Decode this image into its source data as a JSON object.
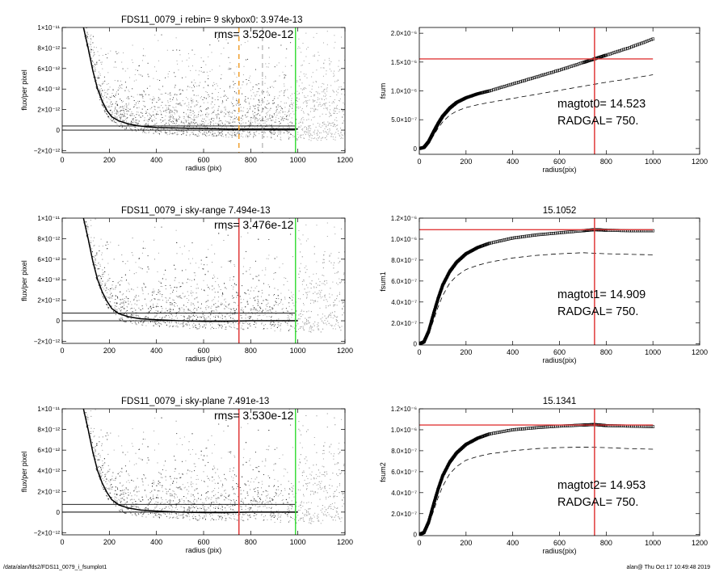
{
  "footer": {
    "path": "/data/alan/fds2/FDS11_0079_i_fsumplot1",
    "stamp": "alan@  Thu Oct 17 10:49:48 2019"
  },
  "colors": {
    "scatter": "#a0a0a0",
    "profile": "#000000",
    "red_line": "#e03a3a",
    "green_line": "#3cdc3c",
    "orange_line": "#f0a030",
    "grid_text": "#000000"
  },
  "chart_data": [
    {
      "type": "scatter",
      "panel": "left-top",
      "title": "FDS11_0079_i rebin= 9    skybox0:  3.974e-13",
      "annotation": "rms= 3.520e-12",
      "xlabel": "radius (pix)",
      "ylabel": "flux/per pixel",
      "xlim": [
        0,
        1200
      ],
      "ylim": [
        -2.2e-12,
        1e-11
      ],
      "xticks": [
        "0",
        "200",
        "400",
        "600",
        "800",
        "1000",
        "1200"
      ],
      "yticks": [
        {
          "value": 1e-11,
          "label": "1×10⁻¹¹"
        },
        {
          "value": 8e-12,
          "label": "8×10⁻¹²"
        },
        {
          "value": 6e-12,
          "label": "6×10⁻¹²"
        },
        {
          "value": 4e-12,
          "label": "4×10⁻¹²"
        },
        {
          "value": 2e-12,
          "label": "2×10⁻¹²"
        },
        {
          "value": 0,
          "label": "0"
        },
        {
          "value": -2e-12,
          "label": "−2×10⁻¹²"
        }
      ],
      "profile": {
        "x": [
          90,
          110,
          130,
          150,
          170,
          190,
          210,
          240,
          280,
          330,
          400,
          500,
          600,
          700,
          800,
          900,
          1000
        ],
        "y": [
          1e-11,
          8e-12,
          5.8e-12,
          4e-12,
          2.8e-12,
          1.9e-12,
          1.3e-12,
          9e-13,
          6e-13,
          4e-13,
          2.5e-13,
          2e-13,
          1.5e-13,
          1e-13,
          1e-13,
          1e-13,
          1e-13
        ]
      },
      "hlines": [
        4e-13,
        0
      ],
      "vlines": [
        {
          "x": 750,
          "color": "orange",
          "style": "dashed"
        },
        {
          "x": 850,
          "color": "gray",
          "style": "dashed"
        },
        {
          "x": 990,
          "color": "green",
          "style": "solid"
        }
      ]
    },
    {
      "type": "scatter",
      "panel": "left-middle",
      "title": "FDS11_0079_i sky-range  7.494e-13",
      "annotation": "rms= 3.476e-12",
      "xlabel": "radius (pix)",
      "ylabel": "flux/per pixel",
      "xlim": [
        0,
        1200
      ],
      "ylim": [
        -2.2e-12,
        1e-11
      ],
      "xticks": [
        "0",
        "200",
        "400",
        "600",
        "800",
        "1000",
        "1200"
      ],
      "yticks": [
        {
          "value": 1e-11,
          "label": "1×10⁻¹¹"
        },
        {
          "value": 8e-12,
          "label": "8×10⁻¹²"
        },
        {
          "value": 6e-12,
          "label": "6×10⁻¹²"
        },
        {
          "value": 4e-12,
          "label": "4×10⁻¹²"
        },
        {
          "value": 2e-12,
          "label": "2×10⁻¹²"
        },
        {
          "value": 0,
          "label": "0"
        },
        {
          "value": -2e-12,
          "label": "−2×10⁻¹²"
        }
      ],
      "profile": {
        "x": [
          90,
          110,
          130,
          150,
          170,
          190,
          210,
          240,
          280,
          330,
          400,
          500,
          600,
          700,
          800,
          900,
          1000
        ],
        "y": [
          1e-11,
          8e-12,
          5.8e-12,
          4e-12,
          2.8e-12,
          1.9e-12,
          1.2e-12,
          7e-13,
          4e-13,
          2e-13,
          1e-13,
          0,
          -5e-14,
          -5e-14,
          0,
          0,
          0
        ]
      },
      "hlines": [
        7.5e-13,
        0
      ],
      "vlines": [
        {
          "x": 750,
          "color": "red",
          "style": "solid"
        },
        {
          "x": 990,
          "color": "green",
          "style": "solid"
        }
      ]
    },
    {
      "type": "scatter",
      "panel": "left-bottom",
      "title": "FDS11_0079_i sky-plane  7.491e-13",
      "annotation": "rms= 3.530e-12",
      "xlabel": "radius (pix)",
      "ylabel": "flux/per pixel",
      "xlim": [
        0,
        1200
      ],
      "ylim": [
        -2.2e-12,
        1e-11
      ],
      "xticks": [
        "0",
        "200",
        "400",
        "600",
        "800",
        "1000",
        "1200"
      ],
      "yticks": [
        {
          "value": 1e-11,
          "label": "1×10⁻¹¹"
        },
        {
          "value": 8e-12,
          "label": "8×10⁻¹²"
        },
        {
          "value": 6e-12,
          "label": "6×10⁻¹²"
        },
        {
          "value": 4e-12,
          "label": "4×10⁻¹²"
        },
        {
          "value": 2e-12,
          "label": "2×10⁻¹²"
        },
        {
          "value": 0,
          "label": "0"
        },
        {
          "value": -2e-12,
          "label": "−2×10⁻¹²"
        }
      ],
      "profile": {
        "x": [
          90,
          110,
          130,
          150,
          170,
          190,
          210,
          240,
          280,
          330,
          400,
          500,
          600,
          700,
          800,
          900,
          1000
        ],
        "y": [
          1e-11,
          8e-12,
          5.8e-12,
          4e-12,
          2.8e-12,
          1.9e-12,
          1.2e-12,
          7e-13,
          4e-13,
          2e-13,
          1e-13,
          0,
          -5e-14,
          -5e-14,
          0,
          0,
          0
        ]
      },
      "hlines": [
        7.5e-13,
        0
      ],
      "vlines": [
        {
          "x": 750,
          "color": "red",
          "style": "solid"
        },
        {
          "x": 990,
          "color": "green",
          "style": "solid"
        }
      ]
    },
    {
      "type": "line",
      "panel": "right-top",
      "title": "",
      "xlabel": "radius(pix)",
      "ylabel": "fsum",
      "xlim": [
        0,
        1200
      ],
      "ylim": [
        -1e-07,
        2.1e-06
      ],
      "xticks": [
        "0",
        "200",
        "400",
        "600",
        "800",
        "1000",
        "1200"
      ],
      "yticks": [
        {
          "value": 2e-06,
          "label": "2.0×10⁻⁶"
        },
        {
          "value": 1.5e-06,
          "label": "1.5×10⁻⁶"
        },
        {
          "value": 1e-06,
          "label": "1.0×10⁻⁶"
        },
        {
          "value": 5e-07,
          "label": "5.0×10⁻⁷"
        },
        {
          "value": 0,
          "label": "0"
        }
      ],
      "annotations": [
        "magtot0=  14.523",
        "RADGAL=     750."
      ],
      "series": [
        {
          "style": "markers",
          "x": [
            0,
            20,
            40,
            60,
            80,
            100,
            130,
            160,
            200,
            250,
            300,
            400,
            500,
            600,
            700,
            750,
            800,
            900,
            1000
          ],
          "y": [
            0,
            2e-08,
            1.2e-07,
            2.8e-07,
            4.3e-07,
            5.6e-07,
            7e-07,
            8e-07,
            8.8e-07,
            9.5e-07,
            1e-06,
            1.12e-06,
            1.24e-06,
            1.36e-06,
            1.49e-06,
            1.555e-06,
            1.62e-06,
            1.75e-06,
            1.9e-06
          ]
        },
        {
          "style": "dashed",
          "x": [
            0,
            20,
            40,
            60,
            80,
            100,
            130,
            160,
            200,
            250,
            300,
            400,
            500,
            600,
            700,
            800,
            900,
            1000
          ],
          "y": [
            0,
            1.5e-08,
            9e-08,
            2.2e-07,
            3.5e-07,
            4.6e-07,
            5.8e-07,
            6.5e-07,
            7.1e-07,
            7.6e-07,
            8e-07,
            8.7e-07,
            9.4e-07,
            1.01e-06,
            1.08e-06,
            1.15e-06,
            1.21e-06,
            1.28e-06
          ]
        }
      ],
      "hlines": [
        1.555e-06
      ],
      "vlines": [
        {
          "x": 750,
          "color": "red",
          "style": "solid"
        }
      ]
    },
    {
      "type": "line",
      "panel": "right-middle",
      "title": "15.1052",
      "xlabel": "radius(pix)",
      "ylabel": "fsum1",
      "xlim": [
        0,
        1200
      ],
      "ylim": [
        -1e-08,
        1.2e-06
      ],
      "xticks": [
        "0",
        "200",
        "400",
        "600",
        "800",
        "1000",
        "1200"
      ],
      "yticks": [
        {
          "value": 1.2e-06,
          "label": "1.2×10⁻⁶"
        },
        {
          "value": 1e-06,
          "label": "1.0×10⁻⁶"
        },
        {
          "value": 8e-07,
          "label": "8.0×10⁻⁷"
        },
        {
          "value": 6e-07,
          "label": "6.0×10⁻⁷"
        },
        {
          "value": 4e-07,
          "label": "4.0×10⁻⁷"
        },
        {
          "value": 2e-07,
          "label": "2.0×10⁻⁷"
        },
        {
          "value": 0,
          "label": "0"
        }
      ],
      "annotations": [
        "magtot1=  14.909",
        "RADGAL=     750."
      ],
      "series": [
        {
          "style": "markers",
          "x": [
            0,
            20,
            40,
            60,
            80,
            100,
            130,
            160,
            200,
            250,
            300,
            400,
            500,
            600,
            700,
            750,
            800,
            900,
            1000
          ],
          "y": [
            0,
            2e-08,
            1.2e-07,
            2.8e-07,
            4.3e-07,
            5.6e-07,
            6.9e-07,
            7.8e-07,
            8.6e-07,
            9.2e-07,
            9.6e-07,
            1.01e-06,
            1.04e-06,
            1.06e-06,
            1.08e-06,
            1.09e-06,
            1.085e-06,
            1.08e-06,
            1.08e-06
          ]
        },
        {
          "style": "dashed",
          "x": [
            0,
            20,
            40,
            60,
            80,
            100,
            130,
            160,
            200,
            250,
            300,
            400,
            500,
            600,
            700,
            800,
            900,
            1000
          ],
          "y": [
            0,
            1.5e-08,
            9e-08,
            2.2e-07,
            3.5e-07,
            4.6e-07,
            5.8e-07,
            6.5e-07,
            7.1e-07,
            7.5e-07,
            7.8e-07,
            8.2e-07,
            8.45e-07,
            8.6e-07,
            8.7e-07,
            8.6e-07,
            8.55e-07,
            8.5e-07
          ]
        }
      ],
      "hlines": [
        1.09e-06
      ],
      "vlines": [
        {
          "x": 750,
          "color": "red",
          "style": "solid"
        }
      ]
    },
    {
      "type": "line",
      "panel": "right-bottom",
      "title": "15.1341",
      "xlabel": "radius(pix)",
      "ylabel": "fsum2",
      "xlim": [
        0,
        1200
      ],
      "ylim": [
        -1e-08,
        1.2e-06
      ],
      "xticks": [
        "0",
        "200",
        "400",
        "600",
        "800",
        "1000",
        "1200"
      ],
      "yticks": [
        {
          "value": 1.2e-06,
          "label": "1.2×10⁻⁶"
        },
        {
          "value": 1e-06,
          "label": "1.0×10⁻⁶"
        },
        {
          "value": 8e-07,
          "label": "8.0×10⁻⁷"
        },
        {
          "value": 6e-07,
          "label": "6.0×10⁻⁷"
        },
        {
          "value": 4e-07,
          "label": "4.0×10⁻⁷"
        },
        {
          "value": 2e-07,
          "label": "2.0×10⁻⁷"
        },
        {
          "value": 0,
          "label": "0"
        }
      ],
      "annotations": [
        "magtot2=  14.953",
        "RADGAL=     750."
      ],
      "series": [
        {
          "style": "markers",
          "x": [
            0,
            20,
            40,
            60,
            80,
            100,
            130,
            160,
            200,
            250,
            300,
            400,
            500,
            600,
            700,
            750,
            800,
            900,
            1000
          ],
          "y": [
            0,
            2e-08,
            1.2e-07,
            2.8e-07,
            4.3e-07,
            5.6e-07,
            6.9e-07,
            7.8e-07,
            8.6e-07,
            9.2e-07,
            9.6e-07,
            1e-06,
            1.02e-06,
            1.035e-06,
            1.045e-06,
            1.05e-06,
            1.04e-06,
            1.035e-06,
            1.03e-06
          ]
        },
        {
          "style": "dashed",
          "x": [
            0,
            20,
            40,
            60,
            80,
            100,
            130,
            160,
            200,
            250,
            300,
            400,
            500,
            600,
            700,
            800,
            900,
            1000
          ],
          "y": [
            0,
            1.5e-08,
            9e-08,
            2.2e-07,
            3.5e-07,
            4.6e-07,
            5.8e-07,
            6.5e-07,
            7.1e-07,
            7.45e-07,
            7.7e-07,
            8e-07,
            8.2e-07,
            8.3e-07,
            8.35e-07,
            8.3e-07,
            8.2e-07,
            8.15e-07
          ]
        }
      ],
      "hlines": [
        1.045e-06
      ],
      "vlines": [
        {
          "x": 750,
          "color": "red",
          "style": "solid"
        }
      ]
    }
  ]
}
